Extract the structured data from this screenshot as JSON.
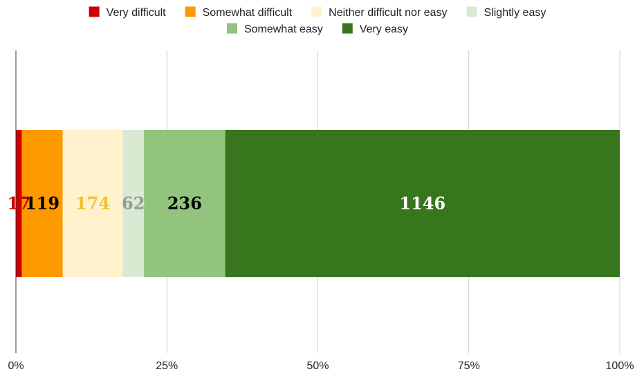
{
  "chart_data": {
    "type": "bar",
    "orientation": "horizontal",
    "stacking": "percent",
    "title": "",
    "xlabel": "",
    "ylabel": "",
    "xlim": [
      0,
      100
    ],
    "x_ticks": [
      "0%",
      "25%",
      "50%",
      "75%",
      "100%"
    ],
    "grid": true,
    "legend_position": "top",
    "series": [
      {
        "name": "Very difficult",
        "values": [
          17
        ],
        "color": "#cc0000",
        "label_color": "#cc0000"
      },
      {
        "name": "Somewhat difficult",
        "values": [
          119
        ],
        "color": "#ff9900",
        "label_color": "#000000"
      },
      {
        "name": "Neither difficult nor easy",
        "values": [
          174
        ],
        "color": "#fff2cc",
        "label_color": "#f1c232"
      },
      {
        "name": "Slightly easy",
        "values": [
          62
        ],
        "color": "#d9ead3",
        "label_color": "#999999"
      },
      {
        "name": "Somewhat easy",
        "values": [
          236
        ],
        "color": "#93c47d",
        "label_color": "#000000"
      },
      {
        "name": "Very easy",
        "values": [
          1146
        ],
        "color": "#38761d",
        "label_color": "#ffffff"
      }
    ]
  }
}
